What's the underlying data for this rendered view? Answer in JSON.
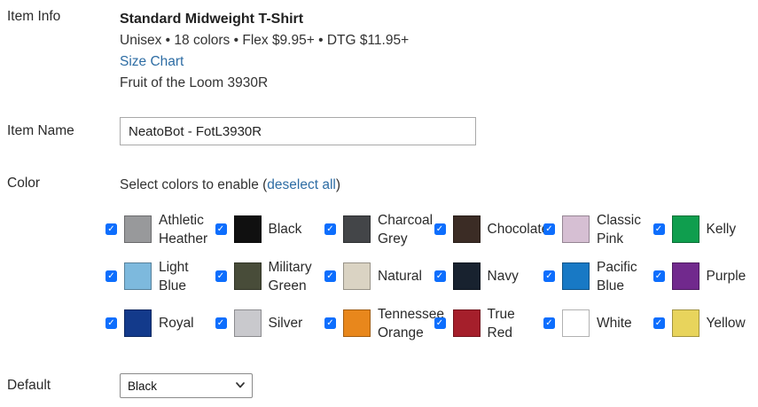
{
  "item_info": {
    "label": "Item Info",
    "title": "Standard Midweight T-Shirt",
    "meta": "Unisex • 18 colors • Flex $9.95+ • DTG $11.95+",
    "size_chart_link": "Size Chart",
    "brand": "Fruit of the Loom 3930R"
  },
  "item_name": {
    "label": "Item Name",
    "value": "NeatoBot - FotL3930R"
  },
  "color_section": {
    "label": "Color",
    "instruction_prefix": "Select colors to enable (",
    "deselect_link": "deselect all",
    "instruction_suffix": ")",
    "link_color": "#2e6da4",
    "checkbox_color": "#0d6efd",
    "swatches": [
      {
        "name": "Athletic Heather",
        "hex": "#98999b",
        "checked": true
      },
      {
        "name": "Black",
        "hex": "#101010",
        "checked": true
      },
      {
        "name": "Charcoal Grey",
        "hex": "#434548",
        "checked": true
      },
      {
        "name": "Chocolate",
        "hex": "#3b2c25",
        "checked": true
      },
      {
        "name": "Classic Pink",
        "hex": "#d6bfd3",
        "checked": true
      },
      {
        "name": "Kelly",
        "hex": "#0f9e4e",
        "checked": true
      },
      {
        "name": "Light Blue",
        "hex": "#7db9dd",
        "checked": true
      },
      {
        "name": "Military Green",
        "hex": "#484c39",
        "checked": true
      },
      {
        "name": "Natural",
        "hex": "#dad3c3",
        "checked": true
      },
      {
        "name": "Navy",
        "hex": "#18222f",
        "checked": true
      },
      {
        "name": "Pacific Blue",
        "hex": "#1879c5",
        "checked": true
      },
      {
        "name": "Purple",
        "hex": "#71298d",
        "checked": true
      },
      {
        "name": "Royal",
        "hex": "#133a8b",
        "checked": true
      },
      {
        "name": "Silver",
        "hex": "#c9c9cd",
        "checked": true
      },
      {
        "name": "Tennessee Orange",
        "hex": "#e8871c",
        "checked": true
      },
      {
        "name": "True Red",
        "hex": "#a51f2b",
        "checked": true
      },
      {
        "name": "White",
        "hex": "#ffffff",
        "checked": true
      },
      {
        "name": "Yellow",
        "hex": "#e8d45c",
        "checked": true
      }
    ]
  },
  "default_section": {
    "label": "Default",
    "selected": "Black"
  }
}
